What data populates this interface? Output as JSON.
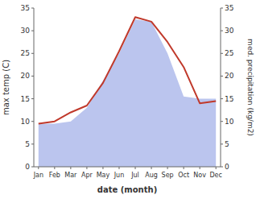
{
  "chart_data": {
    "type": "line",
    "categories": [
      "Jan",
      "Feb",
      "Mar",
      "Apr",
      "May",
      "Jun",
      "Jul",
      "Aug",
      "Sep",
      "Oct",
      "Nov",
      "Dec"
    ],
    "series": [
      {
        "type": "area",
        "color": "#bbc5ee",
        "axis": "y2",
        "values": [
          9.5,
          9.5,
          10.0,
          13.0,
          19.0,
          25.0,
          32.5,
          32.0,
          25.0,
          15.5,
          15.0,
          15.0
        ]
      },
      {
        "type": "line",
        "color": "#c0392b",
        "values": [
          9.5,
          10.0,
          12.0,
          13.5,
          18.5,
          25.5,
          33.0,
          32.0,
          27.5,
          22.0,
          14.0,
          14.5
        ]
      }
    ],
    "xlabel": "date (month)",
    "ylabel": "max temp (C)",
    "y2label": "med. precipitation (kg/m2)",
    "ylim": [
      0,
      35
    ],
    "yticks": [
      0,
      5,
      10,
      15,
      20,
      25,
      30,
      35
    ],
    "y2lim": [
      0,
      35
    ],
    "y2ticks": [
      0,
      5,
      10,
      15,
      20,
      25,
      30,
      35
    ]
  }
}
